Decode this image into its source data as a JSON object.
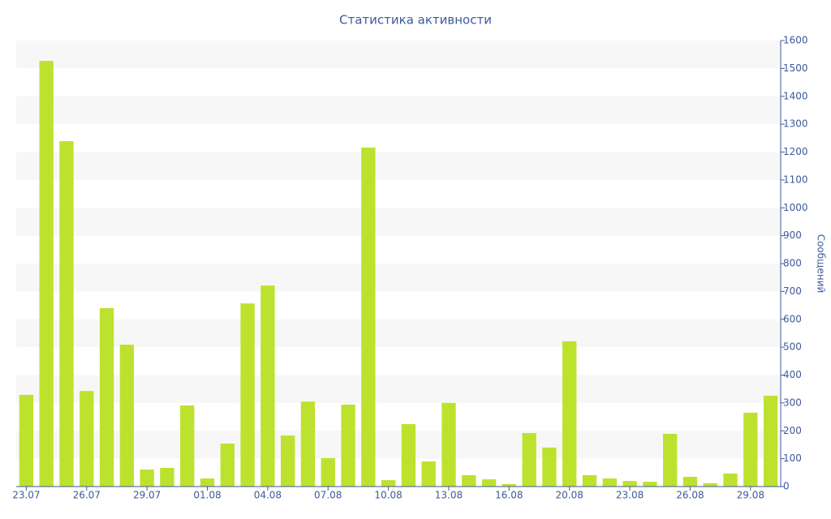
{
  "chart_data": {
    "type": "bar",
    "title": "Статистика активности",
    "y_label": "Сообщений",
    "categories": [
      "23.07",
      null,
      null,
      "26.07",
      null,
      null,
      "29.07",
      null,
      null,
      "01.08",
      null,
      null,
      "04.08",
      null,
      null,
      "07.08",
      null,
      null,
      "10.08",
      null,
      null,
      "13.08",
      null,
      null,
      "16.08",
      null,
      null,
      "20.08",
      null,
      null,
      "23.08",
      null,
      null,
      "26.08",
      null,
      null,
      "29.08",
      null
    ],
    "values": [
      329,
      1527,
      1239,
      343,
      640,
      509,
      61,
      67,
      291,
      29,
      154,
      657,
      721,
      183,
      305,
      102,
      294,
      1216,
      23,
      224,
      90,
      300,
      41,
      26,
      9,
      192,
      140,
      521,
      41,
      29,
      20,
      17,
      189,
      35,
      12,
      47,
      265,
      326
    ],
    "color": "#bde22e",
    "ylim": [
      0,
      1600
    ],
    "yticks": [
      0,
      100,
      200,
      300,
      400,
      500,
      600,
      700,
      800,
      900,
      1000,
      1100,
      1200,
      1300,
      1400,
      1500,
      1600
    ],
    "y_axis_side": "right",
    "grid": true
  }
}
